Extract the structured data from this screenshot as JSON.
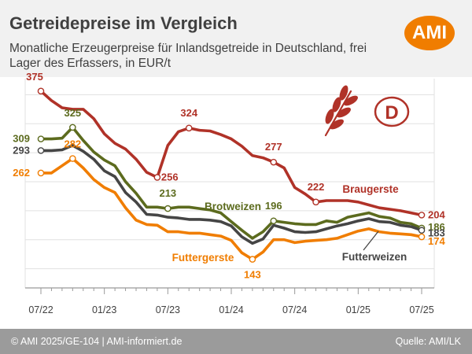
{
  "header": {
    "title": "Getreidepreise im Vergleich",
    "subtitle": "Monatliche Erzeugerpreise für Inlandsgetreide in Deutschland, frei Lager des Erfassers, in EUR/t",
    "logo_text": "AMI"
  },
  "footer": {
    "left": "© AMI 2025/GE-104 | AMI-informiert.de",
    "right": "Quelle: AMI/LK"
  },
  "emblem": {
    "icon": "wheat-ear-icon",
    "country_code": "D"
  },
  "colors": {
    "Braugerste": "#b03228",
    "Brotweizen": "#5c6b1e",
    "Futterweizen": "#454545",
    "Futtergerste": "#f07d00",
    "accent": "#f07d00",
    "header_bg": "#f1f1f1",
    "footer_bg": "#9b9b9b",
    "emblem": "#b03228"
  },
  "chart_data": {
    "type": "line",
    "title": "Getreidepreise im Vergleich",
    "subtitle": "Monatliche Erzeugerpreise für Inlandsgetreide in Deutschland, frei Lager des Erfassers, in EUR/t",
    "x": [
      "07/22",
      "08/22",
      "09/22",
      "10/22",
      "11/22",
      "12/22",
      "01/23",
      "02/23",
      "03/23",
      "04/23",
      "05/23",
      "06/23",
      "07/23",
      "08/23",
      "09/23",
      "10/23",
      "11/23",
      "12/23",
      "01/24",
      "02/24",
      "03/24",
      "04/24",
      "05/24",
      "06/24",
      "07/24",
      "08/24",
      "09/24",
      "10/24",
      "11/24",
      "12/24",
      "01/25",
      "02/25",
      "03/25",
      "04/25",
      "05/25",
      "06/25",
      "07/25"
    ],
    "x_tick_labels": [
      "07/22",
      "01/23",
      "07/23",
      "01/24",
      "07/24",
      "01/25",
      "07/25"
    ],
    "ylim": [
      110,
      390
    ],
    "grid": "horizontal",
    "legend": "inline labels",
    "series": [
      {
        "name": "Braugerste",
        "values": [
          375,
          362,
          352,
          350,
          350,
          337,
          316,
          303,
          295,
          281,
          263,
          256,
          300,
          319,
          324,
          321,
          320,
          315,
          309,
          299,
          286,
          283,
          277,
          269,
          242,
          233,
          222,
          224,
          224,
          224,
          222,
          218,
          214,
          212,
          210,
          207,
          204
        ]
      },
      {
        "name": "Brotweizen",
        "values": [
          309,
          309,
          310,
          325,
          307,
          291,
          280,
          272,
          250,
          234,
          215,
          215,
          213,
          215,
          215,
          213,
          211,
          207,
          195,
          183,
          172,
          181,
          196,
          194,
          192,
          191,
          191,
          196,
          194,
          201,
          204,
          207,
          202,
          200,
          194,
          192,
          186
        ]
      },
      {
        "name": "Futterweizen",
        "values": [
          293,
          293,
          294,
          300,
          292,
          281,
          265,
          257,
          235,
          222,
          205,
          204,
          201,
          200,
          198,
          198,
          197,
          195,
          189,
          174,
          165,
          171,
          190,
          186,
          181,
          180,
          181,
          185,
          189,
          192,
          196,
          199,
          195,
          194,
          190,
          188,
          183
        ]
      },
      {
        "name": "Futtergerste",
        "values": [
          262,
          262,
          272,
          282,
          269,
          253,
          242,
          235,
          214,
          197,
          191,
          190,
          181,
          181,
          179,
          179,
          177,
          175,
          169,
          152,
          143,
          153,
          170,
          170,
          166,
          168,
          169,
          170,
          172,
          177,
          182,
          185,
          181,
          179,
          178,
          177,
          174
        ]
      }
    ],
    "annotations": [
      {
        "series": "Braugerste",
        "label": "375",
        "index": 0
      },
      {
        "series": "Braugerste",
        "label": "256",
        "index": 11
      },
      {
        "series": "Braugerste",
        "label": "324",
        "index": 14
      },
      {
        "series": "Braugerste",
        "label": "277",
        "index": 22
      },
      {
        "series": "Braugerste",
        "label": "222",
        "index": 26
      },
      {
        "series": "Braugerste",
        "label": "204",
        "index": 36
      },
      {
        "series": "Brotweizen",
        "label": "309",
        "index": 0
      },
      {
        "series": "Brotweizen",
        "label": "325",
        "index": 3
      },
      {
        "series": "Brotweizen",
        "label": "213",
        "index": 12
      },
      {
        "series": "Brotweizen",
        "label": "196",
        "index": 22
      },
      {
        "series": "Brotweizen",
        "label": "186",
        "index": 36
      },
      {
        "series": "Futterweizen",
        "label": "293",
        "index": 0
      },
      {
        "series": "Futterweizen",
        "label": "183",
        "index": 36
      },
      {
        "series": "Futtergerste",
        "label": "262",
        "index": 0
      },
      {
        "series": "Futtergerste",
        "label": "282",
        "index": 3
      },
      {
        "series": "Futtergerste",
        "label": "143",
        "index": 20
      },
      {
        "series": "Futtergerste",
        "label": "174",
        "index": 36
      }
    ]
  }
}
